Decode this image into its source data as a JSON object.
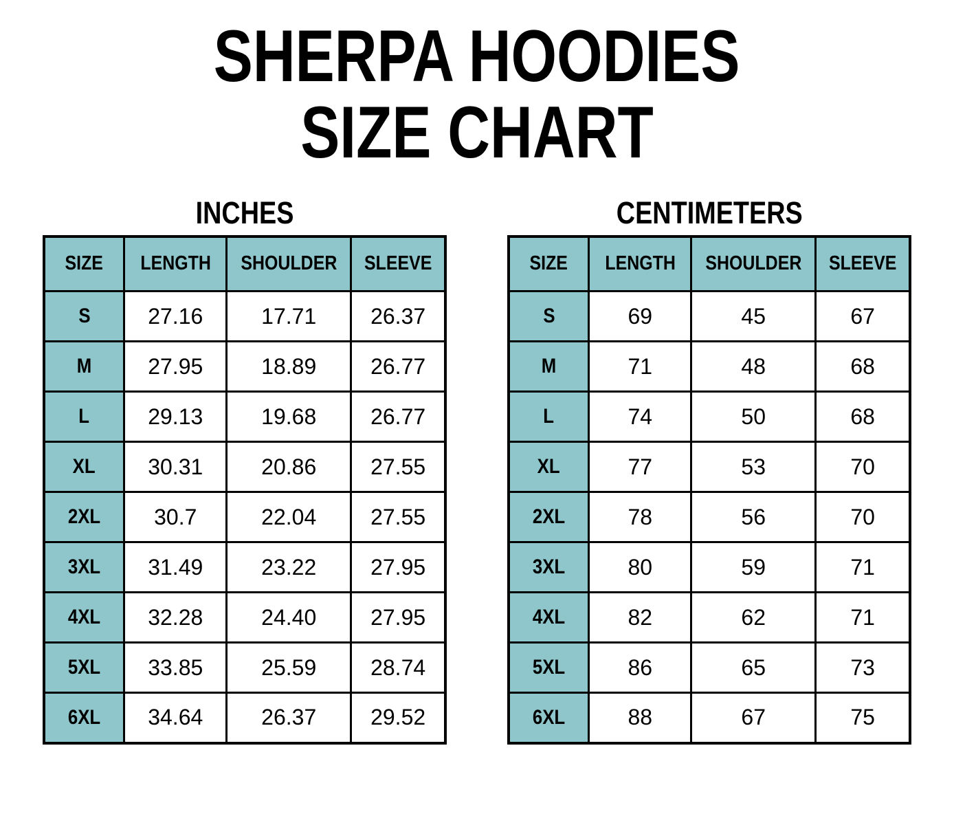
{
  "page_title": {
    "line1": "SHERPA HOODIES",
    "line2": "SIZE CHART"
  },
  "colors": {
    "header_fill": "#8EC6CB",
    "border": "#000000",
    "text": "#000000",
    "background": "#FFFFFF"
  },
  "chart_data": [
    {
      "type": "table",
      "title": "INCHES",
      "columns": [
        "SIZE",
        "LENGTH",
        "SHOULDER",
        "SLEEVE"
      ],
      "rows": [
        [
          "S",
          "27.16",
          "17.71",
          "26.37"
        ],
        [
          "M",
          "27.95",
          "18.89",
          "26.77"
        ],
        [
          "L",
          "29.13",
          "19.68",
          "26.77"
        ],
        [
          "XL",
          "30.31",
          "20.86",
          "27.55"
        ],
        [
          "2XL",
          "30.7",
          "22.04",
          "27.55"
        ],
        [
          "3XL",
          "31.49",
          "23.22",
          "27.95"
        ],
        [
          "4XL",
          "32.28",
          "24.40",
          "27.95"
        ],
        [
          "5XL",
          "33.85",
          "25.59",
          "28.74"
        ],
        [
          "6XL",
          "34.64",
          "26.37",
          "29.52"
        ]
      ]
    },
    {
      "type": "table",
      "title": "CENTIMETERS",
      "columns": [
        "SIZE",
        "LENGTH",
        "SHOULDER",
        "SLEEVE"
      ],
      "rows": [
        [
          "S",
          "69",
          "45",
          "67"
        ],
        [
          "M",
          "71",
          "48",
          "68"
        ],
        [
          "L",
          "74",
          "50",
          "68"
        ],
        [
          "XL",
          "77",
          "53",
          "70"
        ],
        [
          "2XL",
          "78",
          "56",
          "70"
        ],
        [
          "3XL",
          "80",
          "59",
          "71"
        ],
        [
          "4XL",
          "82",
          "62",
          "71"
        ],
        [
          "5XL",
          "86",
          "65",
          "73"
        ],
        [
          "6XL",
          "88",
          "67",
          "75"
        ]
      ]
    }
  ]
}
